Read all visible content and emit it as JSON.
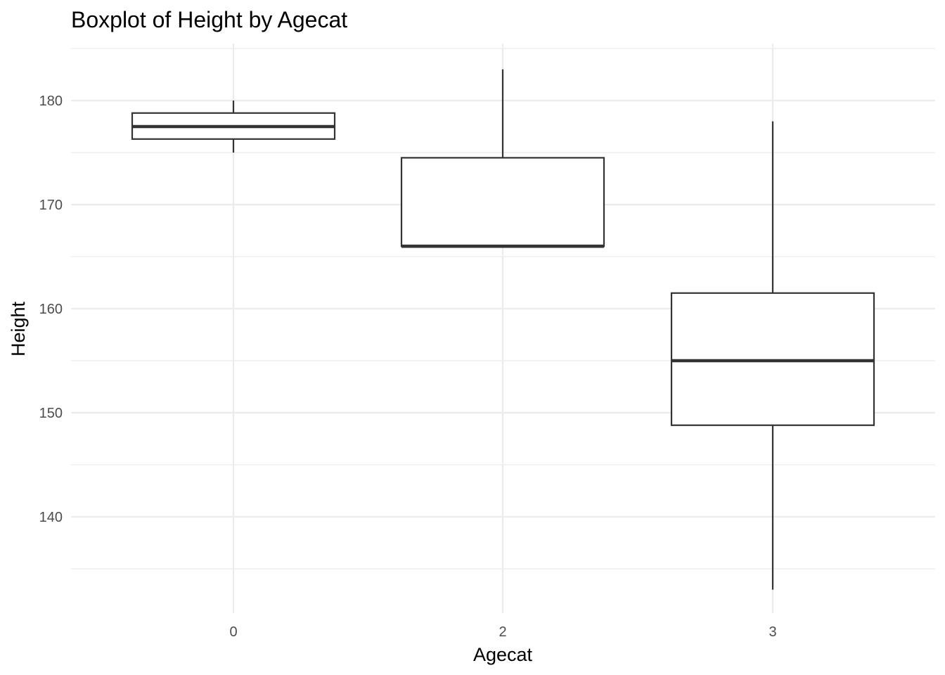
{
  "chart_data": {
    "type": "boxplot",
    "title": "Boxplot of Height by Agecat",
    "xlabel": "Agecat",
    "ylabel": "Height",
    "categories": [
      "0",
      "2",
      "3"
    ],
    "y_ticks": [
      "140",
      "150",
      "160",
      "170",
      "180"
    ],
    "ylim": [
      131,
      185.5
    ],
    "grid": true,
    "boxes": [
      {
        "category": "0",
        "min": 175,
        "q1": 176.3,
        "median": 177.5,
        "q3": 178.8,
        "max": 180
      },
      {
        "category": "2",
        "min": 166,
        "q1": 166,
        "median": 166,
        "q3": 174.5,
        "max": 183
      },
      {
        "category": "3",
        "min": 133,
        "q1": 148.8,
        "median": 155,
        "q3": 161.5,
        "max": 178
      }
    ],
    "colors": {
      "box_stroke": "#333333",
      "box_fill": "#ffffff",
      "grid_major": "#ebebeb",
      "grid_minor": "#ebebeb"
    }
  }
}
